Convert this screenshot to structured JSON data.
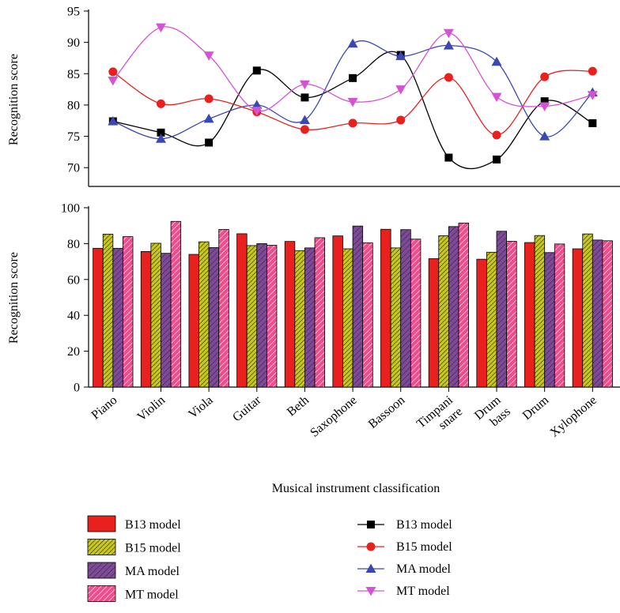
{
  "chart_data": [
    {
      "type": "line",
      "ylabel": "Recognition score",
      "ylim": [
        67,
        95
      ],
      "yticks": [
        70,
        75,
        80,
        85,
        90,
        95
      ],
      "categories": [
        "Piano",
        "Violin",
        "Viola",
        "Guitar",
        "Beth",
        "Saxophone",
        "Bassoon",
        "Timpani snare",
        "Drum bass",
        "Drum",
        "Xylophone"
      ],
      "series": [
        {
          "name": "B13 model",
          "color": "#000000",
          "marker": "square",
          "values": [
            77.4,
            75.6,
            74.0,
            85.5,
            81.2,
            84.3,
            88.0,
            71.6,
            71.3,
            80.6,
            77.1
          ]
        },
        {
          "name": "B15 model",
          "color": "#e8211e",
          "marker": "circle",
          "values": [
            85.3,
            80.2,
            81.0,
            78.9,
            76.1,
            77.1,
            77.6,
            84.4,
            75.2,
            84.5,
            85.4
          ]
        },
        {
          "name": "MA model",
          "color": "#3b47b2",
          "marker": "triangle-up",
          "values": [
            77.4,
            74.6,
            77.8,
            80.0,
            77.6,
            89.8,
            87.8,
            89.5,
            86.9,
            75.0,
            82.0
          ]
        },
        {
          "name": "MT model",
          "color": "#d453d4",
          "marker": "triangle-down",
          "values": [
            83.9,
            92.4,
            87.9,
            79.1,
            83.3,
            80.5,
            82.5,
            91.5,
            81.3,
            79.8,
            81.6
          ]
        }
      ]
    },
    {
      "type": "bar",
      "xlabel": "Musical instrument classification",
      "ylabel": "Recognition score",
      "ylim": [
        0,
        100
      ],
      "yticks": [
        0,
        20,
        40,
        60,
        80,
        100
      ],
      "tick_labels": [
        [
          "Piano"
        ],
        [
          "Violin"
        ],
        [
          "Viola"
        ],
        [
          "Guitar"
        ],
        [
          "Beth"
        ],
        [
          "Saxophone"
        ],
        [
          "Bassoon"
        ],
        [
          "Timpani",
          "snare"
        ],
        [
          "Drum",
          "bass"
        ],
        [
          "Drum"
        ],
        [
          "Xylophone"
        ]
      ],
      "categories": [
        "Piano",
        "Violin",
        "Viola",
        "Guitar",
        "Beth",
        "Saxophone",
        "Bassoon",
        "Timpani snare",
        "Drum bass",
        "Drum",
        "Xylophone"
      ],
      "series": [
        {
          "name": "B13 model",
          "color": "#e8211e",
          "pattern": "solid",
          "values": [
            77.4,
            75.6,
            74.0,
            85.5,
            81.2,
            84.3,
            88.0,
            71.6,
            71.3,
            80.6,
            77.1
          ]
        },
        {
          "name": "B15 model",
          "color": "#c8c81e",
          "pattern": "hatch-dense",
          "values": [
            85.3,
            80.2,
            81.0,
            78.9,
            76.1,
            77.1,
            77.6,
            84.4,
            75.2,
            84.5,
            85.4
          ]
        },
        {
          "name": "MA model",
          "color": "#7d4b96",
          "pattern": "hatch",
          "values": [
            77.4,
            74.6,
            77.8,
            80.0,
            77.6,
            89.8,
            87.8,
            89.5,
            86.9,
            75.0,
            82.0
          ]
        },
        {
          "name": "MT model",
          "color": "#ee4c8c",
          "pattern": "hatch",
          "values": [
            83.9,
            92.4,
            87.9,
            79.1,
            83.3,
            80.5,
            82.5,
            91.5,
            81.3,
            79.8,
            81.6
          ]
        }
      ]
    }
  ]
}
